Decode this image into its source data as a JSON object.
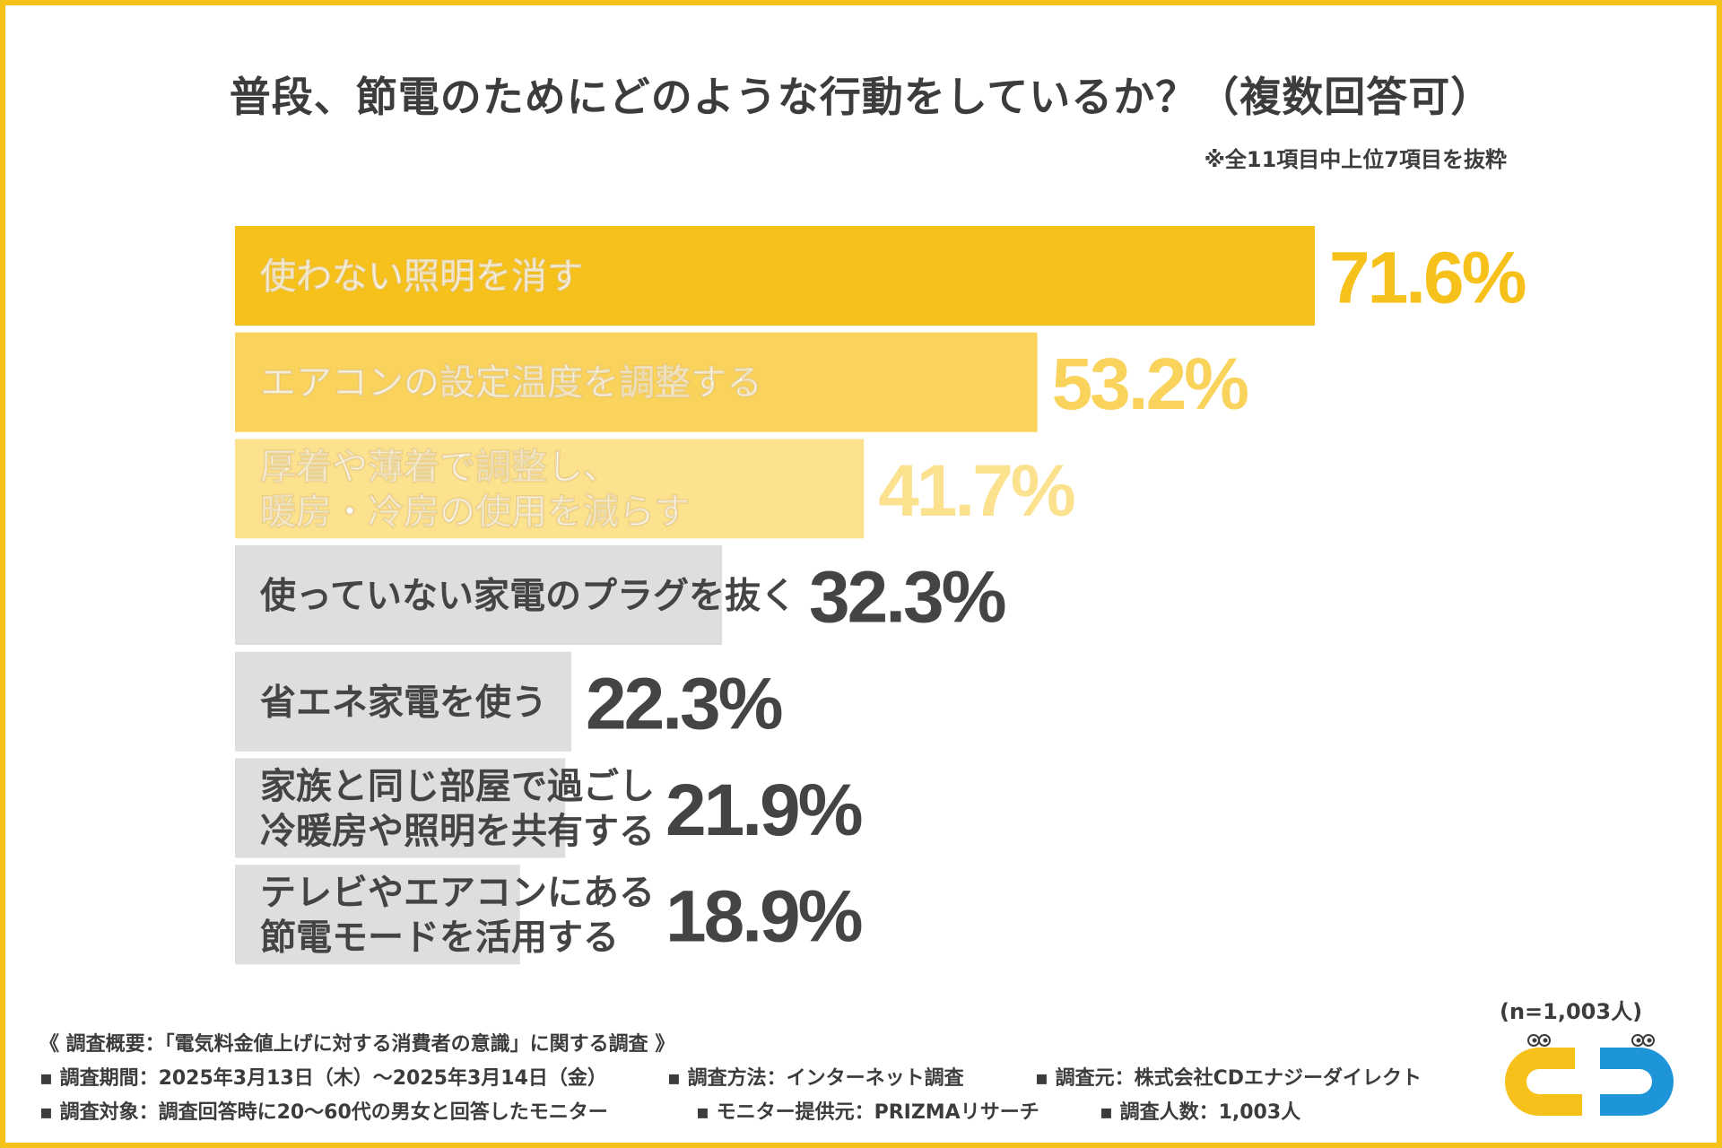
{
  "title": "普段、節電のためにどのような行動をしているか？（複数回答可）",
  "note": "※全11項目中上位7項目を抜粋",
  "sample_size": "(n=1,003人)",
  "colors": {
    "frame": "#f5c21a",
    "highlight": [
      "#f7c11b",
      "#fad35d",
      "#fce18f"
    ],
    "gray_bar": "#dedede",
    "gray_text": "#444444",
    "logo_yellow": "#f7c11b",
    "logo_blue": "#1d95d8"
  },
  "chart_data": {
    "type": "bar",
    "orientation": "horizontal",
    "title": "普段、節電のためにどのような行動をしているか？（複数回答可）",
    "unit": "%",
    "xlim": [
      0,
      100
    ],
    "categories": [
      [
        "使わない照明を消す"
      ],
      [
        "エアコンの設定温度を調整する"
      ],
      [
        "厚着や薄着で調整し、",
        "暖房・冷房の使用を減らす"
      ],
      [
        "使っていない家電のプラグを抜く"
      ],
      [
        "省エネ家電を使う"
      ],
      [
        "家族と同じ部屋で過ごし",
        "冷暖房や照明を共有する"
      ],
      [
        "テレビやエアコンにある",
        "節電モードを活用する"
      ]
    ],
    "values": [
      71.6,
      53.2,
      41.7,
      32.3,
      22.3,
      21.9,
      18.9
    ],
    "value_labels": [
      "71.6%",
      "53.2%",
      "41.7%",
      "32.3%",
      "22.3%",
      "21.9%",
      "18.9%"
    ]
  },
  "survey": {
    "heading": "《 調査概要：「電気料金値上げに対する消費者の意識」に関する調査 》",
    "rows": [
      [
        "▪ 調査期間：2025年3月13日（木）〜2025年3月14日（金）",
        "▪ 調査方法：インターネット調査",
        "▪ 調査元：株式会社CDエナジーダイレクト"
      ],
      [
        "▪ 調査対象：調査回答時に20〜60代の男女と回答したモニター",
        "▪ モニター提供元：PRIZMAリサーチ",
        "▪ 調査人数：1,003人"
      ]
    ]
  }
}
